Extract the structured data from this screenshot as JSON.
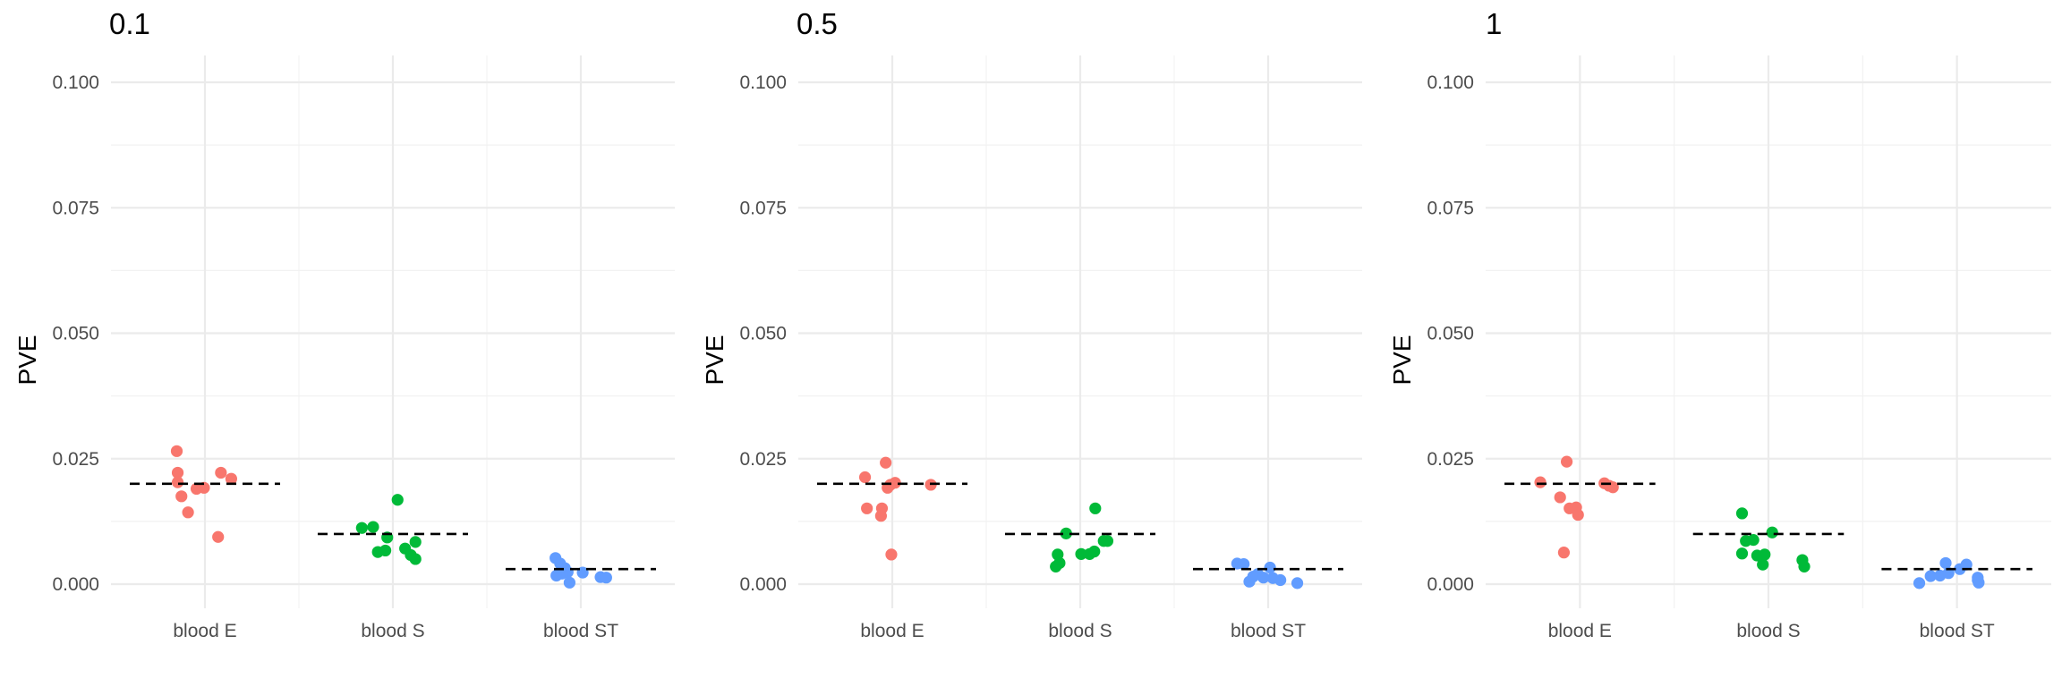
{
  "chart_data": [
    {
      "type": "scatter",
      "title": "0.1",
      "xlabel": "",
      "ylabel": "PVE",
      "ylim": [
        -0.003,
        0.105
      ],
      "yticks": [
        0.0,
        0.025,
        0.05,
        0.075,
        0.1
      ],
      "ytick_labels": [
        "0.000",
        "0.025",
        "0.050",
        "0.075",
        "0.100"
      ],
      "categories": [
        "blood E",
        "blood S",
        "blood ST"
      ],
      "series": [
        {
          "name": "blood E",
          "color": "#F8766D",
          "reference": 0.02,
          "points": [
            {
              "x": -0.3,
              "y": 0.0265
            },
            {
              "x": -0.29,
              "y": 0.0222
            },
            {
              "x": -0.29,
              "y": 0.0203
            },
            {
              "x": -0.25,
              "y": 0.0175
            },
            {
              "x": -0.18,
              "y": 0.0143
            },
            {
              "x": -0.09,
              "y": 0.019
            },
            {
              "x": -0.01,
              "y": 0.0192
            },
            {
              "x": 0.14,
              "y": 0.0094
            },
            {
              "x": 0.17,
              "y": 0.0222
            },
            {
              "x": 0.28,
              "y": 0.021
            }
          ]
        },
        {
          "name": "blood S",
          "color": "#00BA38",
          "reference": 0.01,
          "points": [
            {
              "x": -0.33,
              "y": 0.0112
            },
            {
              "x": -0.21,
              "y": 0.0114
            },
            {
              "x": -0.16,
              "y": 0.0064
            },
            {
              "x": -0.08,
              "y": 0.0067
            },
            {
              "x": -0.06,
              "y": 0.0093
            },
            {
              "x": 0.05,
              "y": 0.0168
            },
            {
              "x": 0.13,
              "y": 0.0071
            },
            {
              "x": 0.19,
              "y": 0.0058
            },
            {
              "x": 0.24,
              "y": 0.005
            },
            {
              "x": 0.24,
              "y": 0.0084
            }
          ]
        },
        {
          "name": "blood ST",
          "color": "#619CFF",
          "reference": 0.003,
          "points": [
            {
              "x": -0.27,
              "y": 0.0052
            },
            {
              "x": -0.22,
              "y": 0.0041
            },
            {
              "x": -0.17,
              "y": 0.0032
            },
            {
              "x": -0.14,
              "y": 0.0024
            },
            {
              "x": -0.12,
              "y": 0.0003
            },
            {
              "x": -0.26,
              "y": 0.0017
            },
            {
              "x": -0.2,
              "y": 0.0021
            },
            {
              "x": 0.02,
              "y": 0.0023
            },
            {
              "x": 0.21,
              "y": 0.0014
            },
            {
              "x": 0.27,
              "y": 0.0013
            }
          ]
        }
      ]
    },
    {
      "type": "scatter",
      "title": "0.5",
      "xlabel": "",
      "ylabel": "PVE",
      "ylim": [
        -0.003,
        0.105
      ],
      "yticks": [
        0.0,
        0.025,
        0.05,
        0.075,
        0.1
      ],
      "ytick_labels": [
        "0.000",
        "0.025",
        "0.050",
        "0.075",
        "0.100"
      ],
      "categories": [
        "blood E",
        "blood S",
        "blood ST"
      ],
      "series": [
        {
          "name": "blood E",
          "color": "#F8766D",
          "reference": 0.02,
          "points": [
            {
              "x": -0.29,
              "y": 0.0213
            },
            {
              "x": -0.27,
              "y": 0.0151
            },
            {
              "x": -0.11,
              "y": 0.0151
            },
            {
              "x": -0.12,
              "y": 0.0136
            },
            {
              "x": -0.07,
              "y": 0.0242
            },
            {
              "x": -0.05,
              "y": 0.0192
            },
            {
              "x": -0.02,
              "y": 0.0198
            },
            {
              "x": 0.03,
              "y": 0.0202
            },
            {
              "x": -0.01,
              "y": 0.0059
            },
            {
              "x": 0.41,
              "y": 0.0198
            }
          ]
        },
        {
          "name": "blood S",
          "color": "#00BA38",
          "reference": 0.01,
          "points": [
            {
              "x": -0.24,
              "y": 0.0059
            },
            {
              "x": -0.26,
              "y": 0.0035
            },
            {
              "x": -0.22,
              "y": 0.0042
            },
            {
              "x": -0.15,
              "y": 0.0101
            },
            {
              "x": 0.01,
              "y": 0.006
            },
            {
              "x": 0.1,
              "y": 0.006
            },
            {
              "x": 0.15,
              "y": 0.0065
            },
            {
              "x": 0.16,
              "y": 0.0151
            },
            {
              "x": 0.25,
              "y": 0.0086
            },
            {
              "x": 0.29,
              "y": 0.0086
            }
          ]
        },
        {
          "name": "blood ST",
          "color": "#619CFF",
          "reference": 0.003,
          "points": [
            {
              "x": -0.33,
              "y": 0.0041
            },
            {
              "x": -0.26,
              "y": 0.004
            },
            {
              "x": -0.2,
              "y": 0.0005
            },
            {
              "x": -0.16,
              "y": 0.0015
            },
            {
              "x": -0.11,
              "y": 0.002
            },
            {
              "x": -0.05,
              "y": 0.0013
            },
            {
              "x": 0.02,
              "y": 0.0033
            },
            {
              "x": 0.05,
              "y": 0.0012
            },
            {
              "x": 0.13,
              "y": 0.0008
            },
            {
              "x": 0.31,
              "y": 0.0002
            }
          ]
        }
      ]
    },
    {
      "type": "scatter",
      "title": "1",
      "xlabel": "",
      "ylabel": "PVE",
      "ylim": [
        -0.003,
        0.105
      ],
      "yticks": [
        0.0,
        0.025,
        0.05,
        0.075,
        0.1
      ],
      "ytick_labels": [
        "0.000",
        "0.025",
        "0.050",
        "0.075",
        "0.100"
      ],
      "categories": [
        "blood E",
        "blood S",
        "blood ST"
      ],
      "series": [
        {
          "name": "blood E",
          "color": "#F8766D",
          "reference": 0.02,
          "points": [
            {
              "x": -0.42,
              "y": 0.0203
            },
            {
              "x": -0.21,
              "y": 0.0173
            },
            {
              "x": -0.14,
              "y": 0.0244
            },
            {
              "x": -0.11,
              "y": 0.0151
            },
            {
              "x": -0.04,
              "y": 0.0153
            },
            {
              "x": -0.02,
              "y": 0.0138
            },
            {
              "x": -0.17,
              "y": 0.0063
            },
            {
              "x": 0.26,
              "y": 0.0201
            },
            {
              "x": 0.31,
              "y": 0.0196
            },
            {
              "x": 0.35,
              "y": 0.0193
            }
          ]
        },
        {
          "name": "blood S",
          "color": "#00BA38",
          "reference": 0.01,
          "points": [
            {
              "x": -0.28,
              "y": 0.0141
            },
            {
              "x": -0.28,
              "y": 0.0061
            },
            {
              "x": -0.24,
              "y": 0.0086
            },
            {
              "x": -0.16,
              "y": 0.0088
            },
            {
              "x": -0.12,
              "y": 0.0057
            },
            {
              "x": -0.06,
              "y": 0.0039
            },
            {
              "x": -0.04,
              "y": 0.0059
            },
            {
              "x": 0.04,
              "y": 0.0103
            },
            {
              "x": 0.36,
              "y": 0.0048
            },
            {
              "x": 0.38,
              "y": 0.0035
            }
          ]
        },
        {
          "name": "blood ST",
          "color": "#619CFF",
          "reference": 0.003,
          "points": [
            {
              "x": -0.4,
              "y": 0.0002
            },
            {
              "x": -0.28,
              "y": 0.0016
            },
            {
              "x": -0.18,
              "y": 0.0017
            },
            {
              "x": -0.12,
              "y": 0.0042
            },
            {
              "x": -0.09,
              "y": 0.0022
            },
            {
              "x": 0.03,
              "y": 0.003
            },
            {
              "x": 0.1,
              "y": 0.0039
            },
            {
              "x": 0.22,
              "y": 0.0013
            },
            {
              "x": 0.23,
              "y": 0.0003
            },
            {
              "x": 0.22,
              "y": 0.0008
            }
          ]
        }
      ]
    }
  ]
}
